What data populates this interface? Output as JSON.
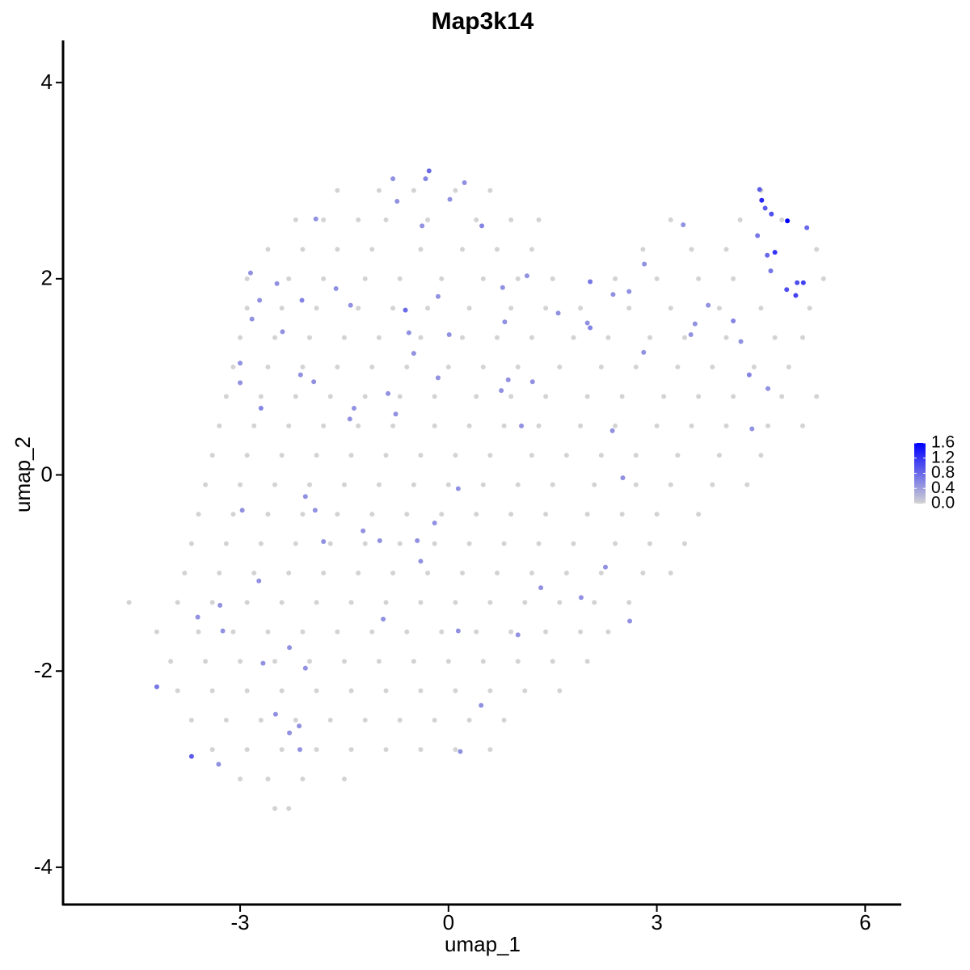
{
  "chart_data": {
    "type": "scatter",
    "title": "Map3k14",
    "x_label": "umap_1",
    "y_label": "umap_2",
    "xlim": [
      -5.55,
      6.52
    ],
    "ylim": [
      -4.38,
      4.43
    ],
    "xticks": [
      -3,
      0,
      3,
      6
    ],
    "yticks": [
      -4,
      -2,
      0,
      2,
      4
    ],
    "low_color": "#d3d3d3",
    "high_color": "#0000ff",
    "color_lim": [
      0,
      1.6
    ],
    "color_ticks": [
      {
        "value": 0,
        "label": "0.0"
      },
      {
        "value": 0.4,
        "label": "0.4"
      },
      {
        "value": 0.8,
        "label": "0.8"
      },
      {
        "value": 1.2,
        "label": "1.2"
      },
      {
        "value": 1.6,
        "label": "1.6"
      }
    ],
    "x": [
      -1.6,
      -1.0,
      -0.5,
      0.1,
      0.6,
      4.5,
      -2.2,
      -1.8,
      -1.3,
      -0.9,
      -0.3,
      0.4,
      0.9,
      1.3,
      3.2,
      4.2,
      4.8,
      -2.6,
      -2.1,
      -1.6,
      -1.1,
      -0.4,
      0.2,
      0.7,
      1.2,
      2.8,
      3.5,
      4.0,
      5.3,
      -2.9,
      -2.3,
      -1.8,
      -1.2,
      -0.7,
      -0.1,
      0.5,
      1.0,
      1.5,
      2.4,
      3.0,
      3.6,
      4.1,
      5.4,
      -2.9,
      -2.4,
      -1.9,
      -1.3,
      -0.8,
      -0.3,
      0.3,
      0.9,
      1.4,
      1.9,
      2.6,
      3.2,
      3.9,
      4.5,
      5.2,
      -3.0,
      -2.5,
      -2.0,
      -1.5,
      -1.0,
      -0.4,
      0.2,
      0.7,
      1.2,
      1.8,
      2.3,
      2.9,
      3.4,
      4.0,
      4.7,
      5.1,
      -3.1,
      -2.6,
      -2.1,
      -1.6,
      -1.1,
      -0.6,
      0.0,
      0.5,
      1.0,
      1.6,
      2.2,
      2.7,
      3.3,
      3.8,
      4.4,
      4.9,
      -3.2,
      -2.7,
      -2.2,
      -1.7,
      -1.2,
      -0.7,
      -0.2,
      0.4,
      0.9,
      1.4,
      2.0,
      2.5,
      3.1,
      3.6,
      4.1,
      4.8,
      5.3,
      -3.3,
      -2.8,
      -2.3,
      -1.8,
      -1.3,
      -0.8,
      -0.2,
      0.3,
      0.8,
      1.3,
      1.9,
      2.4,
      3.0,
      3.5,
      4.0,
      4.6,
      5.1,
      -3.4,
      -2.9,
      -2.4,
      -1.9,
      -1.4,
      -0.9,
      -0.4,
      0.1,
      0.6,
      1.2,
      1.7,
      2.2,
      2.7,
      3.3,
      3.9,
      4.5,
      -3.5,
      -3.0,
      -2.5,
      -2.0,
      -1.5,
      -1.0,
      -0.5,
      0.0,
      0.5,
      1.0,
      1.5,
      2.1,
      2.7,
      3.2,
      3.8,
      4.3,
      -3.6,
      -3.1,
      -2.6,
      -2.1,
      -1.6,
      -1.1,
      -0.6,
      -0.1,
      0.4,
      0.9,
      1.4,
      2.0,
      2.5,
      3.0,
      3.6,
      -3.7,
      -3.2,
      -2.7,
      -2.2,
      -1.7,
      -1.2,
      -0.7,
      -0.2,
      0.3,
      0.8,
      1.3,
      1.8,
      2.4,
      2.9,
      3.4,
      -3.8,
      -3.3,
      -2.8,
      -2.3,
      -1.8,
      -1.3,
      -0.8,
      -0.3,
      0.2,
      0.7,
      1.2,
      1.7,
      2.2,
      2.8,
      3.2,
      -4.6,
      -3.9,
      -3.4,
      -2.9,
      -2.4,
      -1.9,
      -1.4,
      -0.9,
      -0.4,
      0.1,
      0.6,
      1.1,
      1.6,
      2.1,
      2.6,
      -4.2,
      -3.6,
      -3.1,
      -2.6,
      -2.1,
      -1.6,
      -1.1,
      -0.6,
      -0.1,
      0.4,
      0.9,
      1.4,
      1.9,
      2.3,
      -4.0,
      -3.5,
      -3.0,
      -2.5,
      -2.0,
      -1.5,
      -1.0,
      -0.5,
      0.0,
      0.5,
      1.0,
      1.5,
      2.0,
      -3.9,
      -3.4,
      -2.9,
      -2.4,
      -1.9,
      -1.4,
      -0.9,
      -0.4,
      0.1,
      0.6,
      1.1,
      1.6,
      -3.7,
      -3.2,
      -2.7,
      -2.2,
      -1.7,
      -1.2,
      -0.7,
      -0.2,
      0.3,
      0.8,
      -3.4,
      -2.9,
      -2.4,
      -1.9,
      -1.4,
      -0.9,
      -0.4,
      0.1,
      0.6,
      -3.0,
      -2.6,
      -2.1,
      -1.5,
      -2.5,
      -2.3,
      -0.28,
      -0.33,
      -0.8,
      0.02,
      0.23,
      -0.74,
      -1.91,
      0.48,
      -0.38,
      1.13,
      -2.85,
      -2.47,
      -2.72,
      -2.11,
      -1.62,
      -1.41,
      -0.62,
      -0.15,
      0.78,
      2.04,
      2.37,
      2.6,
      1.58,
      2.04,
      2.0,
      0.81,
      0.01,
      -0.57,
      -2.39,
      -2.83,
      -3.0,
      -0.5,
      -0.15,
      -1.94,
      -3.0,
      -2.13,
      -2.7,
      -0.87,
      -0.76,
      -1.36,
      -1.42,
      0.76,
      0.86,
      1.21,
      1.05,
      2.81,
      2.36,
      2.51,
      2.82,
      3.38,
      3.49,
      3.55,
      3.74,
      4.1,
      4.21,
      4.33,
      4.37,
      4.6,
      4.45,
      4.48,
      4.51,
      4.56,
      4.65,
      4.59,
      4.7,
      4.88,
      4.87,
      5.0,
      5.02,
      5.11,
      5.16,
      4.64,
      0.14,
      -2.06,
      -1.92,
      -2.97,
      -1.8,
      -1.23,
      -0.99,
      -0.45,
      -0.2,
      -0.4,
      -2.73,
      -3.29,
      -3.61,
      -3.25,
      -2.29,
      -2.67,
      -2.06,
      -4.2,
      -2.49,
      -2.29,
      -2.15,
      -2.14,
      -3.7,
      -3.31,
      -0.94,
      0.14,
      1.0,
      1.33,
      1.91,
      2.61,
      2.26,
      0.47,
      0.17
    ],
    "y": [
      2.9,
      2.9,
      2.9,
      2.9,
      2.9,
      2.9,
      2.6,
      2.6,
      2.6,
      2.6,
      2.6,
      2.6,
      2.6,
      2.6,
      2.6,
      2.6,
      2.6,
      2.3,
      2.3,
      2.3,
      2.3,
      2.3,
      2.3,
      2.3,
      2.3,
      2.3,
      2.3,
      2.3,
      2.3,
      2.0,
      2.0,
      2.0,
      2.0,
      2.0,
      2.0,
      2.0,
      2.0,
      2.0,
      2.0,
      2.0,
      2.0,
      2.0,
      2.0,
      1.7,
      1.7,
      1.7,
      1.7,
      1.7,
      1.7,
      1.7,
      1.7,
      1.7,
      1.7,
      1.7,
      1.7,
      1.7,
      1.7,
      1.7,
      1.4,
      1.4,
      1.4,
      1.4,
      1.4,
      1.4,
      1.4,
      1.4,
      1.4,
      1.4,
      1.4,
      1.4,
      1.4,
      1.4,
      1.4,
      1.4,
      1.1,
      1.1,
      1.1,
      1.1,
      1.1,
      1.1,
      1.1,
      1.1,
      1.1,
      1.1,
      1.1,
      1.1,
      1.1,
      1.1,
      1.1,
      1.1,
      0.8,
      0.8,
      0.8,
      0.8,
      0.8,
      0.8,
      0.8,
      0.8,
      0.8,
      0.8,
      0.8,
      0.8,
      0.8,
      0.8,
      0.8,
      0.8,
      0.8,
      0.5,
      0.5,
      0.5,
      0.5,
      0.5,
      0.5,
      0.5,
      0.5,
      0.5,
      0.5,
      0.5,
      0.5,
      0.5,
      0.5,
      0.5,
      0.5,
      0.5,
      0.2,
      0.2,
      0.2,
      0.2,
      0.2,
      0.2,
      0.2,
      0.2,
      0.2,
      0.2,
      0.2,
      0.2,
      0.2,
      0.2,
      0.2,
      0.2,
      -0.1,
      -0.1,
      -0.1,
      -0.1,
      -0.1,
      -0.1,
      -0.1,
      -0.1,
      -0.1,
      -0.1,
      -0.1,
      -0.1,
      -0.1,
      -0.1,
      -0.1,
      -0.1,
      -0.4,
      -0.4,
      -0.4,
      -0.4,
      -0.4,
      -0.4,
      -0.4,
      -0.4,
      -0.4,
      -0.4,
      -0.4,
      -0.4,
      -0.4,
      -0.4,
      -0.4,
      -0.7,
      -0.7,
      -0.7,
      -0.7,
      -0.7,
      -0.7,
      -0.7,
      -0.7,
      -0.7,
      -0.7,
      -0.7,
      -0.7,
      -0.7,
      -0.7,
      -0.7,
      -1.0,
      -1.0,
      -1.0,
      -1.0,
      -1.0,
      -1.0,
      -1.0,
      -1.0,
      -1.0,
      -1.0,
      -1.0,
      -1.0,
      -1.0,
      -1.0,
      -1.0,
      -1.3,
      -1.3,
      -1.3,
      -1.3,
      -1.3,
      -1.3,
      -1.3,
      -1.3,
      -1.3,
      -1.3,
      -1.3,
      -1.3,
      -1.3,
      -1.3,
      -1.3,
      -1.6,
      -1.6,
      -1.6,
      -1.6,
      -1.6,
      -1.6,
      -1.6,
      -1.6,
      -1.6,
      -1.6,
      -1.6,
      -1.6,
      -1.6,
      -1.6,
      -1.9,
      -1.9,
      -1.9,
      -1.9,
      -1.9,
      -1.9,
      -1.9,
      -1.9,
      -1.9,
      -1.9,
      -1.9,
      -1.9,
      -1.9,
      -2.2,
      -2.2,
      -2.2,
      -2.2,
      -2.2,
      -2.2,
      -2.2,
      -2.2,
      -2.2,
      -2.2,
      -2.2,
      -2.2,
      -2.5,
      -2.5,
      -2.5,
      -2.5,
      -2.5,
      -2.5,
      -2.5,
      -2.5,
      -2.5,
      -2.5,
      -2.8,
      -2.8,
      -2.8,
      -2.8,
      -2.8,
      -2.8,
      -2.8,
      -2.8,
      -2.8,
      -3.1,
      -3.1,
      -3.1,
      -3.1,
      -3.4,
      -3.4,
      3.1,
      3.02,
      3.02,
      2.81,
      2.98,
      2.79,
      2.61,
      2.54,
      2.54,
      2.03,
      2.06,
      1.95,
      1.78,
      1.78,
      1.9,
      1.73,
      1.68,
      1.82,
      1.91,
      1.97,
      1.84,
      1.87,
      1.65,
      1.5,
      1.55,
      1.56,
      1.43,
      1.45,
      1.46,
      1.59,
      1.14,
      1.24,
      0.99,
      0.95,
      0.94,
      1.02,
      0.68,
      0.83,
      0.62,
      0.68,
      0.57,
      0.86,
      0.97,
      0.95,
      0.5,
      1.25,
      0.45,
      -0.03,
      2.15,
      2.55,
      1.43,
      1.54,
      1.73,
      1.57,
      1.36,
      1.02,
      0.47,
      0.88,
      2.44,
      2.91,
      2.8,
      2.72,
      2.66,
      2.24,
      2.27,
      2.59,
      1.89,
      1.83,
      1.96,
      1.96,
      2.52,
      2.08,
      -0.14,
      -0.22,
      -0.36,
      -0.36,
      -0.68,
      -0.57,
      -0.67,
      -0.67,
      -0.49,
      -0.88,
      -1.08,
      -1.33,
      -1.45,
      -1.59,
      -1.76,
      -1.92,
      -1.97,
      -2.16,
      -2.44,
      -2.63,
      -2.56,
      -2.8,
      -2.87,
      -2.95,
      -1.47,
      -1.59,
      -1.63,
      -1.15,
      -1.25,
      -1.49,
      -0.94,
      -2.35,
      -2.82
    ],
    "values": [
      0,
      0,
      0,
      0,
      0,
      0,
      0,
      0,
      0,
      0,
      0,
      0,
      0,
      0,
      0,
      0,
      0,
      0,
      0,
      0,
      0,
      0,
      0,
      0,
      0,
      0,
      0,
      0,
      0,
      0,
      0,
      0,
      0,
      0,
      0,
      0,
      0,
      0,
      0,
      0,
      0,
      0,
      0,
      0,
      0,
      0,
      0,
      0,
      0,
      0,
      0,
      0,
      0,
      0,
      0,
      0,
      0,
      0,
      0,
      0,
      0,
      0,
      0,
      0,
      0,
      0,
      0,
      0,
      0,
      0,
      0,
      0,
      0,
      0,
      0,
      0,
      0,
      0,
      0,
      0,
      0,
      0,
      0,
      0,
      0,
      0,
      0,
      0,
      0,
      0,
      0,
      0,
      0,
      0,
      0,
      0,
      0,
      0,
      0,
      0,
      0,
      0,
      0,
      0,
      0,
      0,
      0,
      0,
      0,
      0,
      0,
      0,
      0,
      0,
      0,
      0,
      0,
      0,
      0,
      0,
      0,
      0,
      0,
      0,
      0,
      0,
      0,
      0,
      0,
      0,
      0,
      0,
      0,
      0,
      0,
      0,
      0,
      0,
      0,
      0,
      0,
      0,
      0,
      0,
      0,
      0,
      0,
      0,
      0,
      0,
      0,
      0,
      0,
      0,
      0,
      0,
      0,
      0,
      0,
      0,
      0,
      0,
      0,
      0,
      0,
      0,
      0,
      0,
      0,
      0,
      0,
      0,
      0,
      0,
      0,
      0,
      0,
      0,
      0,
      0,
      0,
      0,
      0,
      0,
      0,
      0,
      0,
      0,
      0,
      0,
      0,
      0,
      0,
      0,
      0,
      0,
      0,
      0,
      0,
      0,
      0,
      0,
      0,
      0,
      0,
      0,
      0,
      0,
      0,
      0,
      0,
      0,
      0,
      0,
      0,
      0,
      0,
      0,
      0,
      0,
      0,
      0,
      0,
      0,
      0,
      0,
      0,
      0,
      0,
      0,
      0,
      0,
      0,
      0,
      0,
      0,
      0,
      0,
      0,
      0,
      0,
      0,
      0,
      0,
      0,
      0,
      0,
      0,
      0,
      0,
      0,
      0,
      0,
      0,
      0,
      0,
      0,
      0,
      0,
      0,
      0,
      0,
      0,
      0,
      0,
      0,
      0,
      0,
      0,
      0,
      0,
      0,
      0,
      0,
      0,
      0,
      0,
      0,
      0,
      0,
      0.8,
      0.6,
      0.5,
      0.5,
      0.5,
      0.5,
      0.5,
      0.6,
      0.5,
      0.5,
      0.5,
      0.5,
      0.5,
      0.6,
      0.5,
      0.5,
      0.8,
      0.5,
      0.5,
      0.7,
      0.5,
      0.5,
      0.5,
      0.6,
      0.5,
      0.5,
      0.5,
      0.5,
      0.5,
      0.5,
      0.5,
      0.5,
      0.5,
      0.5,
      0.5,
      0.5,
      0.6,
      0.5,
      0.5,
      0.5,
      0.5,
      0.5,
      0.5,
      0.5,
      0.5,
      0.5,
      0.5,
      0.5,
      0.5,
      0.5,
      0.5,
      0.5,
      0.5,
      0.6,
      0.5,
      0.6,
      0.5,
      0.5,
      0.7,
      0.9,
      1.3,
      0.9,
      1.0,
      0.8,
      1.2,
      1.6,
      1.0,
      1.1,
      1.0,
      1.1,
      0.8,
      0.7,
      0.5,
      0.5,
      0.5,
      0.5,
      0.5,
      0.5,
      0.5,
      0.5,
      0.5,
      0.5,
      0.5,
      0.5,
      0.5,
      0.5,
      0.5,
      0.5,
      0.5,
      0.7,
      0.5,
      0.5,
      0.5,
      0.5,
      0.9,
      0.5,
      0.5,
      0.5,
      0.5,
      0.5,
      0.5,
      0.5,
      0.5,
      0.5,
      0.5
    ]
  }
}
